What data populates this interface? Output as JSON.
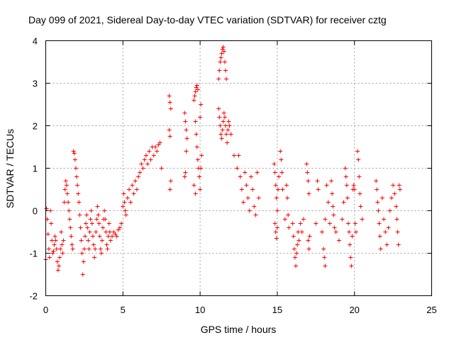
{
  "chart_data": {
    "type": "scatter",
    "title": "Day 099 of 2021, Sidereal Day-to-day VTEC variation (SDTVAR) for receiver cztg",
    "xlabel": "GPS time / hours",
    "ylabel": "SDTVAR / TECUs",
    "xlim": [
      0,
      25
    ],
    "ylim": [
      -2,
      4
    ],
    "xticks": [
      "0",
      "5",
      "10",
      "15",
      "20",
      "25"
    ],
    "yticks": [
      "-2",
      "-1",
      "0",
      "1",
      "2",
      "3",
      "4"
    ],
    "grid": true,
    "marker": "plus",
    "color": "#ff0000",
    "series": [
      {
        "name": "SDTVAR",
        "points": [
          [
            0.0,
            -1.15
          ],
          [
            0.05,
            0.05
          ],
          [
            0.1,
            -0.2
          ],
          [
            0.15,
            -0.55
          ],
          [
            0.2,
            -0.9
          ],
          [
            0.25,
            -1.1
          ],
          [
            0.3,
            0.0
          ],
          [
            0.35,
            -0.3
          ],
          [
            0.4,
            -0.7
          ],
          [
            0.45,
            -1.0
          ],
          [
            0.5,
            -0.95
          ],
          [
            0.55,
            -0.8
          ],
          [
            0.6,
            -0.6
          ],
          [
            0.65,
            -0.7
          ],
          [
            0.7,
            -0.9
          ],
          [
            0.75,
            -1.2
          ],
          [
            0.8,
            -1.4
          ],
          [
            0.85,
            -1.3
          ],
          [
            0.9,
            -1.1
          ],
          [
            0.95,
            -0.9
          ],
          [
            1.0,
            -0.5
          ],
          [
            1.05,
            -0.8
          ],
          [
            1.1,
            -1.0
          ],
          [
            1.15,
            -0.7
          ],
          [
            1.2,
            0.2
          ],
          [
            1.25,
            0.5
          ],
          [
            1.3,
            0.7
          ],
          [
            1.35,
            0.6
          ],
          [
            1.4,
            0.4
          ],
          [
            1.45,
            0.2
          ],
          [
            1.5,
            0.0
          ],
          [
            1.55,
            -0.2
          ],
          [
            1.6,
            -0.4
          ],
          [
            1.65,
            -0.6
          ],
          [
            1.7,
            -0.8
          ],
          [
            1.75,
            -0.9
          ],
          [
            1.8,
            1.4
          ],
          [
            1.85,
            1.35
          ],
          [
            1.9,
            1.2
          ],
          [
            1.95,
            1.0
          ],
          [
            2.0,
            0.8
          ],
          [
            2.05,
            0.6
          ],
          [
            2.1,
            0.4
          ],
          [
            2.15,
            0.2
          ],
          [
            2.2,
            -0.1
          ],
          [
            2.25,
            -0.4
          ],
          [
            2.3,
            -0.7
          ],
          [
            2.35,
            -1.0
          ],
          [
            2.4,
            -1.5
          ],
          [
            2.45,
            -1.2
          ],
          [
            2.5,
            -0.9
          ],
          [
            2.55,
            -0.6
          ],
          [
            2.6,
            -0.3
          ],
          [
            2.65,
            -0.1
          ],
          [
            2.7,
            -0.4
          ],
          [
            2.75,
            -0.7
          ],
          [
            2.8,
            -0.9
          ],
          [
            2.85,
            -0.5
          ],
          [
            2.9,
            -0.2
          ],
          [
            2.95,
            0.0
          ],
          [
            3.0,
            -0.3
          ],
          [
            3.05,
            -0.6
          ],
          [
            3.1,
            -0.8
          ],
          [
            3.15,
            -1.1
          ],
          [
            3.2,
            -0.9
          ],
          [
            3.25,
            -0.5
          ],
          [
            3.3,
            -0.2
          ],
          [
            3.35,
            0.1
          ],
          [
            3.4,
            -0.1
          ],
          [
            3.45,
            -0.3
          ],
          [
            3.5,
            -0.6
          ],
          [
            3.55,
            -0.9
          ],
          [
            3.6,
            -1.0
          ],
          [
            3.65,
            -0.7
          ],
          [
            3.7,
            -0.4
          ],
          [
            3.75,
            -0.2
          ],
          [
            3.8,
            0.0
          ],
          [
            3.85,
            -0.2
          ],
          [
            3.9,
            -0.5
          ],
          [
            3.95,
            -0.8
          ],
          [
            4.0,
            -0.9
          ],
          [
            4.05,
            -0.6
          ],
          [
            4.1,
            -0.3
          ],
          [
            4.15,
            -0.5
          ],
          [
            4.2,
            -0.7
          ],
          [
            4.3,
            -0.6
          ],
          [
            4.4,
            -0.5
          ],
          [
            4.5,
            -0.55
          ],
          [
            4.6,
            -0.6
          ],
          [
            4.7,
            -0.45
          ],
          [
            4.8,
            -0.4
          ],
          [
            4.9,
            -0.3
          ],
          [
            5.0,
            0.1
          ],
          [
            5.05,
            0.4
          ],
          [
            5.1,
            0.2
          ],
          [
            5.15,
            0.0
          ],
          [
            5.2,
            -0.1
          ],
          [
            5.3,
            0.3
          ],
          [
            5.4,
            0.5
          ],
          [
            5.5,
            0.2
          ],
          [
            5.6,
            0.6
          ],
          [
            5.7,
            0.4
          ],
          [
            5.8,
            0.7
          ],
          [
            5.9,
            0.5
          ],
          [
            6.0,
            0.8
          ],
          [
            6.1,
            0.9
          ],
          [
            6.2,
            1.1
          ],
          [
            6.3,
            1.0
          ],
          [
            6.4,
            1.2
          ],
          [
            6.5,
            1.3
          ],
          [
            6.6,
            1.1
          ],
          [
            6.7,
            1.4
          ],
          [
            6.8,
            1.2
          ],
          [
            6.9,
            1.5
          ],
          [
            7.0,
            1.3
          ],
          [
            7.1,
            1.5
          ],
          [
            7.2,
            1.4
          ],
          [
            7.3,
            1.55
          ],
          [
            7.4,
            1.6
          ],
          [
            7.5,
            1.0
          ],
          [
            8.0,
            2.7
          ],
          [
            8.05,
            2.55
          ],
          [
            8.1,
            2.4
          ],
          [
            8.0,
            1.9
          ],
          [
            8.05,
            1.75
          ],
          [
            8.1,
            0.7
          ],
          [
            8.05,
            0.5
          ],
          [
            9.0,
            0.8
          ],
          [
            9.05,
            0.9
          ],
          [
            9.0,
            2.3
          ],
          [
            9.05,
            2.1
          ],
          [
            9.1,
            1.9
          ],
          [
            9.15,
            1.7
          ],
          [
            9.1,
            1.4
          ],
          [
            9.6,
            2.6
          ],
          [
            9.65,
            2.7
          ],
          [
            9.7,
            2.8
          ],
          [
            9.75,
            2.9
          ],
          [
            9.8,
            2.95
          ],
          [
            9.85,
            2.85
          ],
          [
            9.7,
            2.1
          ],
          [
            9.75,
            1.8
          ],
          [
            9.8,
            1.5
          ],
          [
            9.85,
            1.2
          ],
          [
            9.9,
            1.0
          ],
          [
            9.95,
            0.8
          ],
          [
            10.0,
            0.5
          ],
          [
            10.05,
            1.0
          ],
          [
            10.1,
            1.3
          ],
          [
            10.0,
            2.2
          ],
          [
            10.05,
            2.5
          ],
          [
            9.6,
            0.6
          ],
          [
            9.7,
            0.4
          ],
          [
            11.2,
            3.1
          ],
          [
            11.25,
            3.3
          ],
          [
            11.3,
            3.5
          ],
          [
            11.35,
            3.6
          ],
          [
            11.4,
            3.7
          ],
          [
            11.45,
            3.8
          ],
          [
            11.5,
            3.85
          ],
          [
            11.55,
            3.75
          ],
          [
            11.6,
            3.5
          ],
          [
            11.65,
            3.3
          ],
          [
            11.7,
            3.1
          ],
          [
            11.2,
            2.4
          ],
          [
            11.25,
            2.2
          ],
          [
            11.3,
            2.0
          ],
          [
            11.35,
            1.8
          ],
          [
            11.4,
            1.7
          ],
          [
            11.45,
            1.9
          ],
          [
            11.5,
            2.1
          ],
          [
            11.55,
            2.3
          ],
          [
            11.6,
            2.2
          ],
          [
            11.65,
            2.0
          ],
          [
            11.7,
            1.8
          ],
          [
            11.75,
            1.6
          ],
          [
            11.8,
            1.9
          ],
          [
            11.85,
            2.1
          ],
          [
            11.9,
            2.0
          ],
          [
            12.0,
            1.8
          ],
          [
            12.2,
            1.3
          ],
          [
            12.4,
            1.0
          ],
          [
            12.5,
            1.3
          ],
          [
            12.6,
            0.8
          ],
          [
            12.7,
            0.5
          ],
          [
            12.8,
            0.2
          ],
          [
            12.9,
            0.9
          ],
          [
            13.0,
            0.6
          ],
          [
            13.1,
            0.3
          ],
          [
            13.2,
            0.0
          ],
          [
            13.3,
            0.8
          ],
          [
            13.4,
            0.5
          ],
          [
            13.5,
            0.1
          ],
          [
            13.6,
            -0.1
          ],
          [
            13.7,
            0.9
          ],
          [
            13.8,
            0.3
          ],
          [
            14.8,
            1.1
          ],
          [
            14.85,
            0.9
          ],
          [
            14.9,
            0.6
          ],
          [
            14.95,
            0.3
          ],
          [
            15.0,
            0.0
          ],
          [
            14.85,
            -0.3
          ],
          [
            14.9,
            -0.5
          ],
          [
            14.95,
            -0.65
          ],
          [
            15.0,
            -0.4
          ],
          [
            15.05,
            0.5
          ],
          [
            15.1,
            0.8
          ],
          [
            15.2,
            1.4
          ],
          [
            15.25,
            1.2
          ],
          [
            15.3,
            0.9
          ],
          [
            15.35,
            0.5
          ],
          [
            15.5,
            -0.2
          ],
          [
            15.6,
            0.6
          ],
          [
            15.65,
            0.3
          ],
          [
            15.7,
            -0.1
          ],
          [
            15.75,
            -0.4
          ],
          [
            16.0,
            -0.3
          ],
          [
            16.05,
            -0.6
          ],
          [
            16.1,
            -0.9
          ],
          [
            16.15,
            -1.1
          ],
          [
            16.2,
            -1.3
          ],
          [
            16.25,
            -1.0
          ],
          [
            16.3,
            -0.8
          ],
          [
            16.35,
            -0.5
          ],
          [
            16.4,
            -0.7
          ],
          [
            16.5,
            -0.3
          ],
          [
            16.6,
            -0.5
          ],
          [
            16.7,
            -0.2
          ],
          [
            16.9,
            1.1
          ],
          [
            16.95,
            0.9
          ],
          [
            17.0,
            0.7
          ],
          [
            17.05,
            0.4
          ],
          [
            17.0,
            -0.7
          ],
          [
            17.05,
            -0.9
          ],
          [
            17.1,
            -0.6
          ],
          [
            17.5,
            -0.3
          ],
          [
            17.6,
            0.7
          ],
          [
            17.65,
            0.5
          ],
          [
            17.9,
            -0.5
          ],
          [
            18.0,
            -0.9
          ],
          [
            18.05,
            -1.1
          ],
          [
            18.1,
            -1.3
          ],
          [
            18.1,
            -0.2
          ],
          [
            18.2,
            0.6
          ],
          [
            18.3,
            0.2
          ],
          [
            18.4,
            -0.3
          ],
          [
            18.5,
            0.7
          ],
          [
            18.55,
            0.4
          ],
          [
            18.6,
            0.1
          ],
          [
            18.65,
            -0.1
          ],
          [
            18.7,
            -0.4
          ],
          [
            18.8,
            -0.5
          ],
          [
            19.0,
            -0.7
          ],
          [
            19.2,
            -0.2
          ],
          [
            19.3,
            0.2
          ],
          [
            19.4,
            1.0
          ],
          [
            19.45,
            0.8
          ],
          [
            19.5,
            0.6
          ],
          [
            19.55,
            0.3
          ],
          [
            19.6,
            -0.3
          ],
          [
            19.65,
            -0.5
          ],
          [
            19.7,
            -0.8
          ],
          [
            19.75,
            -1.1
          ],
          [
            19.8,
            -1.3
          ],
          [
            19.85,
            -0.6
          ],
          [
            19.9,
            0.5
          ],
          [
            19.95,
            0.6
          ],
          [
            20.0,
            0.5
          ],
          [
            20.05,
            -0.3
          ],
          [
            20.1,
            -0.5
          ],
          [
            20.2,
            1.4
          ],
          [
            20.25,
            1.2
          ],
          [
            20.3,
            0.8
          ],
          [
            20.35,
            0.4
          ],
          [
            20.4,
            0.1
          ],
          [
            20.5,
            -0.2
          ],
          [
            21.4,
            0.7
          ],
          [
            21.45,
            0.5
          ],
          [
            21.5,
            0.2
          ],
          [
            21.55,
            0.0
          ],
          [
            21.6,
            -0.3
          ],
          [
            21.65,
            -0.6
          ],
          [
            21.7,
            -0.9
          ],
          [
            21.8,
            0.3
          ],
          [
            21.9,
            -0.2
          ],
          [
            22.0,
            -0.5
          ],
          [
            22.1,
            -0.8
          ],
          [
            22.2,
            -0.4
          ],
          [
            22.3,
            0.0
          ],
          [
            22.4,
            0.3
          ],
          [
            22.5,
            0.6
          ],
          [
            22.6,
            0.4
          ],
          [
            22.7,
            0.1
          ],
          [
            22.75,
            -0.2
          ],
          [
            22.8,
            -0.5
          ],
          [
            22.85,
            -0.8
          ],
          [
            22.9,
            0.6
          ],
          [
            22.95,
            0.5
          ]
        ]
      }
    ]
  }
}
